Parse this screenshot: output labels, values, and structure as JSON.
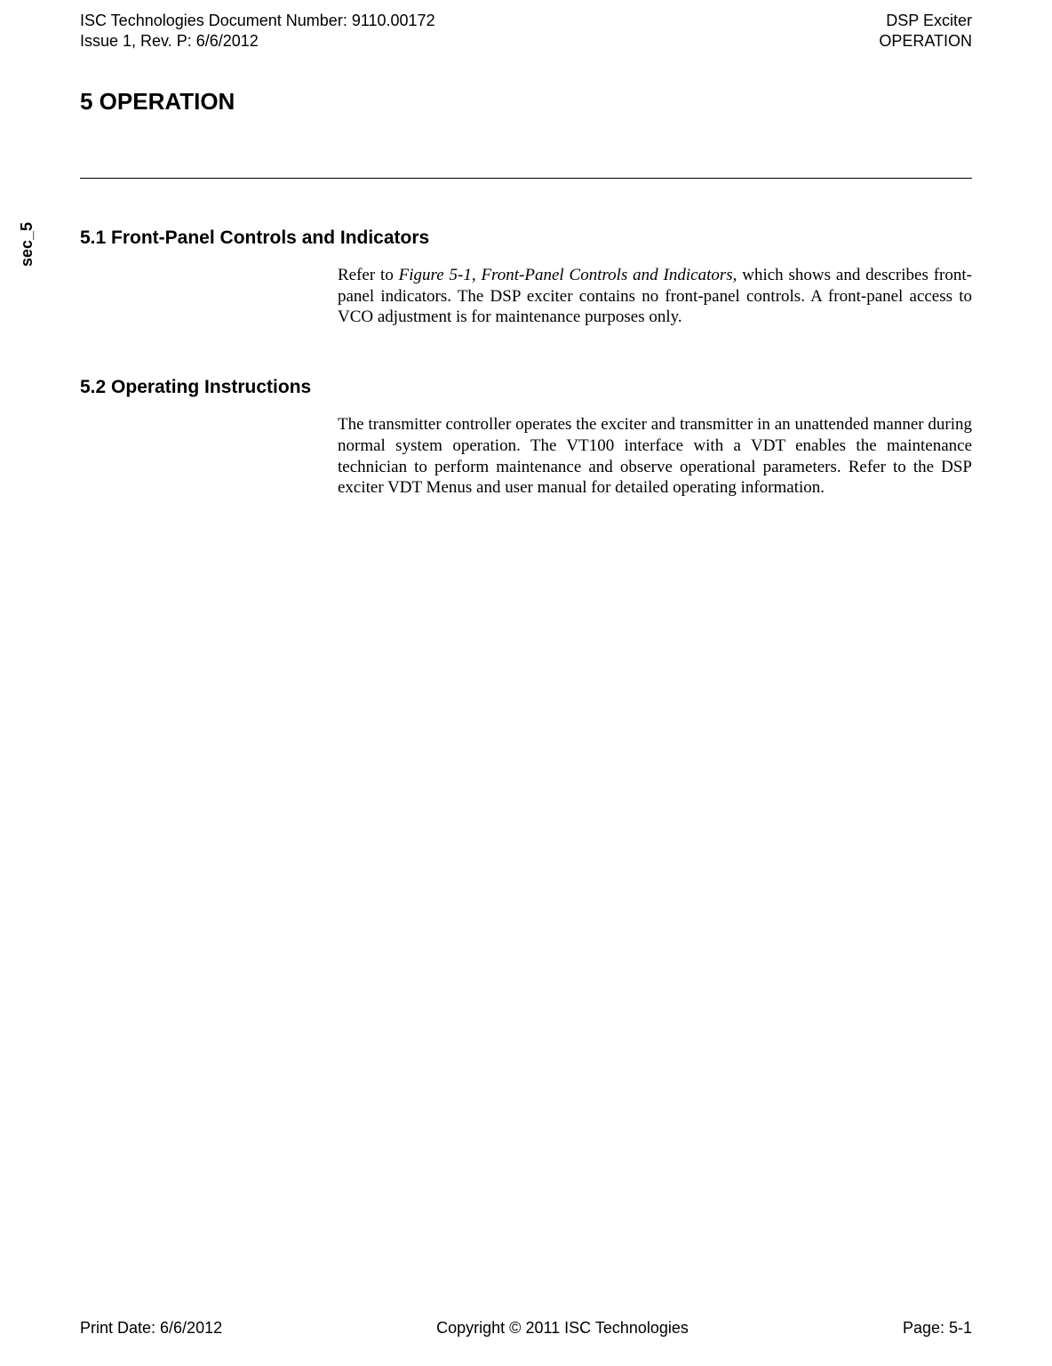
{
  "header": {
    "doc_number": "ISC Technologies Document Number: 9110.00172",
    "issue": "Issue 1, Rev. P: 6/6/2012",
    "product": "DSP Exciter",
    "section": "OPERATION"
  },
  "title": "5 OPERATION",
  "side_label": "sec_5",
  "section_5_1": {
    "heading": "5.1 Front-Panel Controls and Indicators",
    "text_prefix": "Refer to ",
    "text_italic": "Figure 5-1, Front-Panel Controls and Indicators,",
    "text_suffix": " which shows and describes front-panel indicators. The DSP exciter contains no front-panel controls. A front-panel access to VCO adjustment is for maintenance purposes only."
  },
  "section_5_2": {
    "heading": "5.2 Operating Instructions",
    "text": "The transmitter controller operates the exciter and transmitter in an unattended manner during normal system operation. The VT100 interface with a VDT enables the maintenance technician to perform maintenance and observe operational parameters. Refer to the DSP exciter VDT Menus and user manual for detailed operating information."
  },
  "footer": {
    "print_date": "Print Date: 6/6/2012",
    "copyright": "Copyright © 2011 ISC Technologies",
    "page": "Page: 5-1"
  }
}
